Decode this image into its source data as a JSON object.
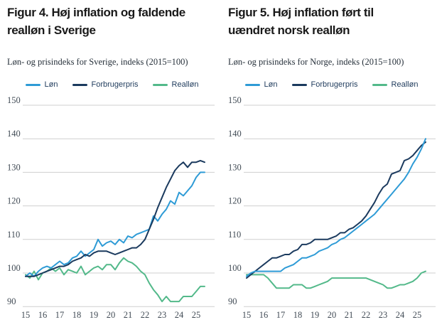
{
  "chart_data": [
    {
      "type": "line",
      "title": "Figur 4. Høj inflation og faldende\nrealløn i Sverige",
      "subtitle": "Løn- og prisindeks for Sverige, indeks (2015=100)",
      "xlabel": "",
      "ylabel": "indeks (2015=100)",
      "ylim": [
        90,
        150
      ],
      "y_ticks": [
        90,
        100,
        110,
        120,
        130,
        140,
        150
      ],
      "x_ticks": [
        15,
        16,
        17,
        18,
        19,
        20,
        21,
        22,
        23,
        24,
        25
      ],
      "x_start": 15,
      "x_step": 0.25,
      "grid": "horizontal",
      "legend_position": "top",
      "legend": [
        {
          "label": "Løn",
          "color": "#2e9bd6"
        },
        {
          "label": "Forbrugerpris",
          "color": "#1b3a5e"
        },
        {
          "label": "Realløn",
          "color": "#53b98a"
        }
      ],
      "series": [
        {
          "name": "Realløn",
          "color": "#53b98a",
          "values": [
            99.5,
            98.5,
            100.5,
            98,
            100,
            100.5,
            101.5,
            100.5,
            101.5,
            99.5,
            101,
            100.5,
            100,
            102,
            99.5,
            100.5,
            101.5,
            102,
            101,
            102.5,
            102.5,
            101,
            103,
            104.5,
            103.5,
            103,
            102,
            100.5,
            99.5,
            97,
            95,
            93.5,
            91.5,
            93,
            91.5,
            91.5,
            91.5,
            93,
            93,
            93,
            94.5,
            96,
            96
          ]
        },
        {
          "name": "Løn",
          "color": "#2e9bd6",
          "values": [
            99,
            100,
            99,
            100.5,
            101.5,
            102,
            101.5,
            102.5,
            103.5,
            102.5,
            103,
            104.5,
            105,
            106.5,
            105,
            106,
            107,
            110,
            108,
            109,
            109.5,
            108.5,
            110,
            109,
            111,
            110.5,
            111.5,
            112,
            112.5,
            113,
            117,
            115.5,
            117.5,
            119,
            121.5,
            120.5,
            124,
            123,
            124.5,
            126,
            128.5,
            130,
            130
          ]
        },
        {
          "name": "Forbrugerpris",
          "color": "#1b3a5e",
          "values": [
            99,
            99,
            99,
            99.5,
            100,
            100.5,
            101,
            101.5,
            102,
            102,
            102.5,
            103.5,
            104,
            104.5,
            105.5,
            105,
            106,
            106.5,
            106.5,
            106.5,
            106,
            105.5,
            106,
            106.5,
            107,
            107.5,
            107.5,
            108.5,
            110,
            113,
            116,
            119.5,
            122.5,
            125.5,
            128,
            130.5,
            132,
            133,
            131.5,
            133,
            133,
            133.5,
            133
          ]
        }
      ]
    },
    {
      "type": "line",
      "title": "Figur 5. Høj inflation ført til\nuændret norsk realløn",
      "subtitle": "Løn- og prisindeks for Norge, indeks (2015=100)",
      "xlabel": "",
      "ylabel": "indeks (2015=100)",
      "ylim": [
        90,
        150
      ],
      "y_ticks": [
        90,
        100,
        110,
        120,
        130,
        140,
        150
      ],
      "x_ticks": [
        15,
        16,
        17,
        18,
        19,
        20,
        21,
        22,
        23,
        24,
        25
      ],
      "x_start": 15,
      "x_step": 0.25,
      "grid": "horizontal",
      "legend_position": "top",
      "legend": [
        {
          "label": "Løn",
          "color": "#2e9bd6"
        },
        {
          "label": "Forbrugerpris",
          "color": "#1b3a5e"
        },
        {
          "label": "Realløn",
          "color": "#53b98a"
        }
      ],
      "series": [
        {
          "name": "Realløn",
          "color": "#53b98a",
          "values": [
            99.5,
            99.5,
            99.5,
            99.5,
            99.5,
            98.5,
            97,
            95.5,
            95.5,
            95.5,
            95.5,
            96.5,
            96.5,
            96.5,
            95.5,
            95.5,
            96,
            96.5,
            97,
            97.5,
            98.5,
            98.5,
            98.5,
            98.5,
            98.5,
            98.5,
            98.5,
            98.5,
            98.5,
            98,
            97.5,
            97,
            96.5,
            95.5,
            95.5,
            96,
            96.5,
            96.5,
            97,
            97.5,
            98.5,
            100,
            100.5
          ]
        },
        {
          "name": "Forbrugerpris",
          "color": "#1b3a5e",
          "values": [
            98.5,
            99.5,
            100.5,
            101.5,
            102.5,
            103.5,
            104.5,
            104.5,
            105,
            105.5,
            105.5,
            106.5,
            107,
            108.5,
            108.5,
            109,
            110,
            110,
            110,
            110,
            110.5,
            111,
            112,
            112,
            113,
            113.5,
            114.5,
            115.5,
            117,
            119,
            121,
            123.5,
            125.5,
            126.5,
            129.5,
            130,
            130.5,
            133.5,
            134,
            135,
            136.5,
            138,
            139
          ]
        },
        {
          "name": "Løn",
          "color": "#2e9bd6",
          "values": [
            99,
            100,
            100.5,
            100.5,
            100.5,
            100.5,
            100.5,
            100.5,
            100.5,
            101.5,
            102,
            102.5,
            103.5,
            104.5,
            104.5,
            105,
            105.5,
            106.5,
            107,
            107.5,
            108.5,
            109,
            110,
            110.5,
            111.5,
            112.5,
            113.5,
            114.5,
            115.5,
            116.5,
            117.5,
            119,
            120.5,
            122,
            123.5,
            125,
            126.5,
            128,
            130,
            132.5,
            134.5,
            137,
            140
          ]
        }
      ]
    }
  ],
  "colors": {
    "lon": "#2e9bd6",
    "forbrugerpris": "#1b3a5e",
    "reallon": "#53b98a",
    "grid": "#cfcfcf",
    "title": "#191919"
  }
}
